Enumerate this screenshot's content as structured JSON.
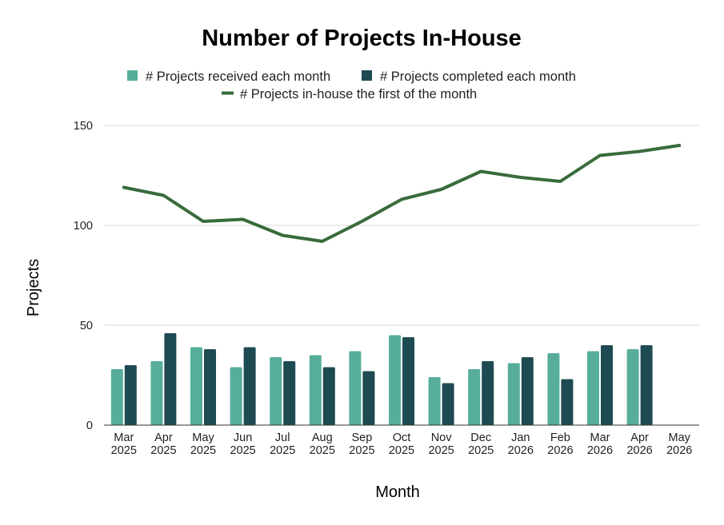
{
  "chart_data": {
    "type": "bar",
    "title": "Number of Projects In-House",
    "xlabel": "Month",
    "ylabel": "Projects",
    "ylim": [
      0,
      150
    ],
    "yticks": [
      "0",
      "50",
      "100",
      "150"
    ],
    "grid": true,
    "legend_position": "top",
    "categories": [
      [
        "Mar",
        "2025"
      ],
      [
        "Apr",
        "2025"
      ],
      [
        "May",
        "2025"
      ],
      [
        "Jun",
        "2025"
      ],
      [
        "Jul",
        "2025"
      ],
      [
        "Aug",
        "2025"
      ],
      [
        "Sep",
        "2025"
      ],
      [
        "Oct",
        "2025"
      ],
      [
        "Nov",
        "2025"
      ],
      [
        "Dec",
        "2025"
      ],
      [
        "Jan",
        "2026"
      ],
      [
        "Feb",
        "2026"
      ],
      [
        "Mar",
        "2026"
      ],
      [
        "Apr",
        "2026"
      ],
      [
        "May",
        "2026"
      ]
    ],
    "series": [
      {
        "name": "# Projects received each month",
        "type": "bar",
        "color": "#56ae9a",
        "values": [
          28,
          32,
          39,
          29,
          34,
          35,
          37,
          45,
          24,
          28,
          31,
          36,
          37,
          38,
          null
        ]
      },
      {
        "name": "# Projects completed each month",
        "type": "bar",
        "color": "#1e4a52",
        "values": [
          30,
          46,
          38,
          39,
          32,
          29,
          27,
          44,
          21,
          32,
          34,
          23,
          40,
          40,
          null
        ]
      },
      {
        "name": "# Projects in-house the first of the month",
        "type": "line",
        "color": "#386b3b",
        "values": [
          119,
          115,
          102,
          103,
          95,
          92,
          102,
          113,
          118,
          127,
          124,
          122,
          135,
          137,
          140
        ]
      }
    ]
  }
}
